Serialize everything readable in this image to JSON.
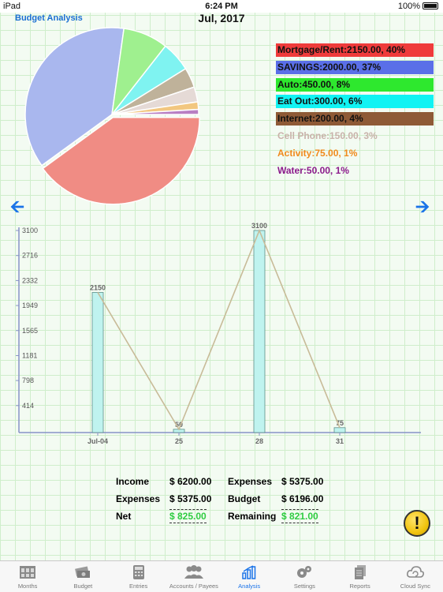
{
  "status_bar": {
    "device": "iPad",
    "time": "6:24 PM",
    "battery": "100%"
  },
  "header": {
    "app_title": "Budget Analysis",
    "month": "Jul, 2017"
  },
  "navigation": {
    "prev_icon": "arrow-left-icon",
    "next_icon": "arrow-right-icon"
  },
  "pie": {
    "slices": [
      {
        "name": "Mortgage/Rent",
        "value": 2150.0,
        "percent": 40,
        "color": "#f08c84"
      },
      {
        "name": "SAVINGS",
        "value": 2000.0,
        "percent": 37,
        "color": "#a9b7ee"
      },
      {
        "name": "Auto",
        "value": 450.0,
        "percent": 8,
        "color": "#9ff08f"
      },
      {
        "name": "Eat Out",
        "value": 300.0,
        "percent": 6,
        "color": "#7ff3f1"
      },
      {
        "name": "Internet",
        "value": 200.0,
        "percent": 4,
        "color": "#bfb29a"
      },
      {
        "name": "Cell Phone",
        "value": 150.0,
        "percent": 3,
        "color": "#e5dad6"
      },
      {
        "name": "Activity",
        "value": 75.0,
        "percent": 1,
        "color": "#f2c780"
      },
      {
        "name": "Water",
        "value": 50.0,
        "percent": 1,
        "color": "#b87fc3"
      }
    ]
  },
  "legend": [
    {
      "label": "Mortgage/Rent:2150.00, 40%",
      "bg": "#ef3b3b",
      "fg": "#111111"
    },
    {
      "label": "SAVINGS:2000.00, 37%",
      "bg": "#5a6fe8",
      "fg": "#111111"
    },
    {
      "label": "Auto:450.00, 8%",
      "bg": "#2ee82e",
      "fg": "#111111"
    },
    {
      "label": "Eat Out:300.00, 6%",
      "bg": "#11f3f3",
      "fg": "#111111"
    },
    {
      "label": "Internet:200.00, 4%",
      "bg": "#8e5a36",
      "fg": "#111111"
    },
    {
      "label": "Cell Phone:150.00, 3%",
      "bg": "transparent",
      "fg": "#c9b2aa"
    },
    {
      "label": "Activity:75.00, 1%",
      "bg": "transparent",
      "fg": "#f08a1c"
    },
    {
      "label": "Water:50.00, 1%",
      "bg": "transparent",
      "fg": "#8b1a8b"
    }
  ],
  "chart_data": {
    "type": "bar",
    "categories": [
      "Jul-04",
      "25",
      "28",
      "31"
    ],
    "values": [
      2150,
      50,
      3100,
      75
    ],
    "data_labels": [
      "2150",
      "50",
      "3100",
      "75"
    ],
    "y_ticks": [
      "414",
      "798",
      "1181",
      "1565",
      "1949",
      "2332",
      "2716",
      "3100"
    ],
    "ylim": [
      0,
      3100
    ],
    "overlay_line": true,
    "bar_color": "#bff3ef",
    "line_color": "#c8bb98",
    "grid": true
  },
  "summary": {
    "income_label": "Income",
    "income_value": "$ 6200.00",
    "expenses_label": "Expenses",
    "expenses_value": "$ 5375.00",
    "net_label": "Net",
    "net_value": "$ 825.00",
    "expenses2_label": "Expenses",
    "expenses2_value": "$ 5375.00",
    "budget_label": "Budget",
    "budget_value": "$ 6196.00",
    "remaining_label": "Remaining",
    "remaining_value": "$ 821.00"
  },
  "warning_button": {
    "symbol": "!"
  },
  "tabs": [
    {
      "label": "Months",
      "icon": "calendar-grid-icon",
      "active": false
    },
    {
      "label": "Budget",
      "icon": "money-stack-icon",
      "active": false
    },
    {
      "label": "Entries",
      "icon": "calculator-icon",
      "active": false
    },
    {
      "label": "Accounts / Payees",
      "icon": "people-icon",
      "active": false
    },
    {
      "label": "Analysis",
      "icon": "bar-chart-icon",
      "active": true
    },
    {
      "label": "Settings",
      "icon": "gears-icon",
      "active": false
    },
    {
      "label": "Reports",
      "icon": "documents-icon",
      "active": false
    },
    {
      "label": "Cloud Sync",
      "icon": "cloud-sync-icon",
      "active": false
    }
  ]
}
